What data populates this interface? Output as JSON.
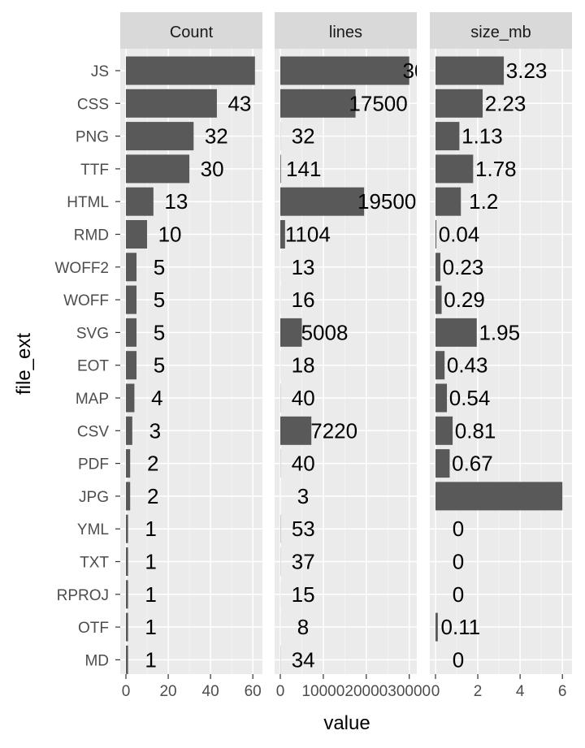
{
  "chart_data": {
    "type": "bar",
    "orientation": "horizontal",
    "xlabel": "value",
    "ylabel": "file_ext",
    "grid": true,
    "categories": [
      "JS",
      "CSS",
      "PNG",
      "TTF",
      "HTML",
      "RMD",
      "WOFF2",
      "WOFF",
      "SVG",
      "EOT",
      "MAP",
      "CSV",
      "PDF",
      "JPG",
      "YML",
      "TXT",
      "RPROJ",
      "OTF",
      "MD"
    ],
    "panels": [
      {
        "name": "Count",
        "xlim": [
          0,
          63
        ],
        "ticks": [
          0,
          20,
          40,
          60
        ],
        "tick_labels": [
          "0",
          "20",
          "40",
          "60"
        ],
        "values": [
          61,
          43,
          32,
          30,
          13,
          10,
          5,
          5,
          5,
          5,
          4,
          3,
          2,
          2,
          1,
          1,
          1,
          1,
          1
        ],
        "labels": [
          "61",
          "43",
          "32",
          "30",
          "13",
          "10",
          "5",
          "5",
          "5",
          "5",
          "4",
          "3",
          "2",
          "2",
          "1",
          "1",
          "1",
          "1",
          "1"
        ]
      },
      {
        "name": "lines",
        "xlim": [
          0,
          31000
        ],
        "ticks": [
          0,
          10000,
          20000,
          30000
        ],
        "tick_labels": [
          "0",
          "10000",
          "20000",
          "30000"
        ],
        "values": [
          30000,
          17500,
          32,
          141,
          19500,
          1104,
          13,
          16,
          5008,
          18,
          40,
          7220,
          40,
          3,
          53,
          37,
          15,
          8,
          34
        ],
        "labels": [
          "30000",
          "17500",
          "32",
          "141",
          "19500",
          "1104",
          "13",
          "16",
          "5008",
          "18",
          "40",
          "7220",
          "40",
          "3",
          "53",
          "37",
          "15",
          "8",
          "34"
        ]
      },
      {
        "name": "size_mb",
        "xlim": [
          0,
          6.3
        ],
        "ticks": [
          0,
          2,
          4,
          6
        ],
        "tick_labels": [
          "0",
          "2",
          "4",
          "6"
        ],
        "values": [
          3.23,
          2.23,
          1.13,
          1.78,
          1.2,
          0.04,
          0.23,
          0.29,
          1.95,
          0.43,
          0.54,
          0.81,
          0.67,
          6.0,
          0,
          0,
          0,
          0.11,
          0
        ],
        "labels": [
          "3.23",
          "2.23",
          "1.13",
          "1.78",
          "1.2",
          "0.04",
          "0.23",
          "0.29",
          "1.95",
          "0.43",
          "0.54",
          "0.81",
          "0.67",
          "6",
          "0",
          "0",
          "0",
          "0.11",
          "0"
        ]
      }
    ],
    "colors": {
      "bar": "#595959",
      "panel_bg": "#ebebeb",
      "strip_bg": "#d9d9d9",
      "grid_major": "#ffffff",
      "grid_minor": "#f5f5f5"
    }
  }
}
